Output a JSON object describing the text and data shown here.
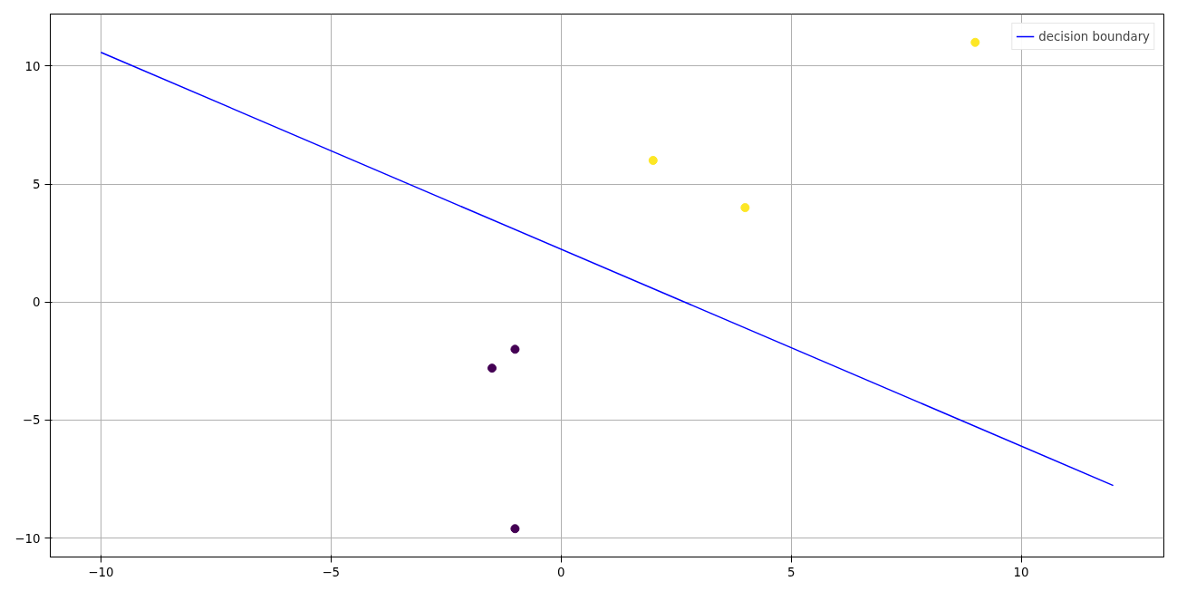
{
  "chart_data": {
    "type": "scatter",
    "series": [
      {
        "x": [
          2,
          4,
          9,
          -1,
          -1.5,
          -1
        ],
        "values": [
          6,
          4,
          11,
          -2,
          -2.8,
          -9.6
        ],
        "colors": [
          "#fde725",
          "#fde725",
          "#fde725",
          "#440154",
          "#440154",
          "#440154"
        ],
        "marker": "circle"
      },
      {
        "type": "line",
        "name": "decision boundary",
        "color": "#0000ff",
        "x": [
          -10,
          12
        ],
        "values": [
          10.58,
          -7.77
        ]
      }
    ],
    "xlim": [
      -11.1,
      13.1
    ],
    "ylim": [
      -10.8,
      12.2
    ],
    "xticks": [
      {
        "value": -10,
        "label": "−10"
      },
      {
        "value": -5,
        "label": "−5"
      },
      0,
      5,
      10
    ],
    "yticks": [
      {
        "value": -10,
        "label": "−10"
      },
      {
        "value": -5,
        "label": "−5"
      },
      0,
      5,
      10
    ],
    "grid": true,
    "legend": "top right"
  }
}
